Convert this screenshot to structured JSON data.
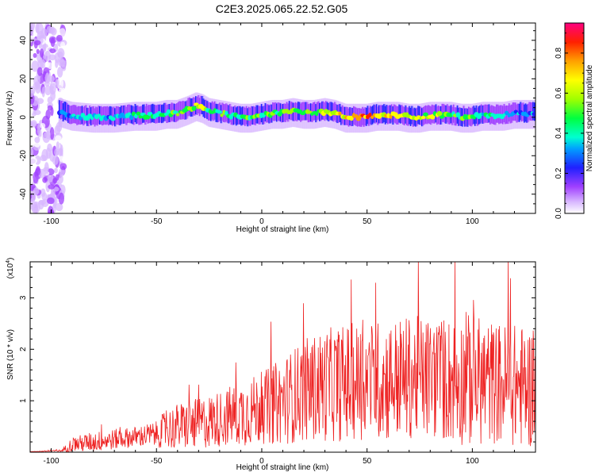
{
  "figure_title": "C2E3.2025.065.22.52.G05",
  "chart_data": [
    {
      "type": "heatmap",
      "title": "C2E3.2025.065.22.52.G05",
      "xlabel": "Height of straight line (km)",
      "ylabel": "Frequency (Hz)",
      "xlim": [
        -110,
        130
      ],
      "ylim": [
        -50,
        49
      ],
      "xticks": [
        -100,
        -50,
        0,
        50,
        100
      ],
      "yticks": [
        -40,
        -20,
        0,
        20,
        40
      ],
      "colorbar": {
        "label": "Normalized spectral amplitude",
        "range": [
          0.0,
          0.95
        ],
        "ticks": [
          0.0,
          0.2,
          0.4,
          0.6,
          0.8
        ]
      },
      "ridge": {
        "x": [
          -96,
          -90,
          -80,
          -70,
          -60,
          -50,
          -45,
          -40,
          -35,
          -31,
          -28,
          -25,
          -20,
          -15,
          -10,
          -5,
          0,
          5,
          10,
          15,
          20,
          25,
          30,
          35,
          40,
          45,
          50,
          55,
          60,
          65,
          70,
          75,
          80,
          85,
          90,
          95,
          100,
          105,
          110,
          115,
          120,
          125,
          130
        ],
        "freq_hz": [
          3,
          1,
          0,
          0,
          1,
          1,
          2,
          2,
          4,
          6,
          5,
          3,
          2,
          1,
          0,
          0,
          1,
          2,
          2,
          3,
          2,
          2,
          3,
          2,
          0,
          0,
          0,
          1,
          1,
          1,
          0,
          0,
          1,
          1,
          1,
          0,
          0,
          1,
          1,
          1,
          2,
          2,
          2
        ],
        "peak_amplitude": [
          0.35,
          0.45,
          0.45,
          0.45,
          0.5,
          0.55,
          0.6,
          0.65,
          0.7,
          0.8,
          0.75,
          0.6,
          0.6,
          0.55,
          0.55,
          0.6,
          0.6,
          0.6,
          0.65,
          0.7,
          0.75,
          0.7,
          0.75,
          0.8,
          0.85,
          0.9,
          0.9,
          0.85,
          0.85,
          0.8,
          0.8,
          0.75,
          0.7,
          0.7,
          0.65,
          0.6,
          0.6,
          0.5,
          0.5,
          0.45,
          0.45,
          0.4,
          0.4
        ]
      }
    },
    {
      "type": "line",
      "xlabel": "Height of straight line (km)",
      "ylabel": "SNR (10 * v/v)",
      "y_multiplier": "(x10",
      "y_multiplier_exp": "4",
      "y_multiplier_close": ")",
      "xlim": [
        -110,
        130
      ],
      "ylim": [
        0,
        3.7
      ],
      "xticks": [
        -100,
        -50,
        0,
        50,
        100
      ],
      "yticks": [
        1,
        2,
        3
      ],
      "color": "#ee2222",
      "envelope": {
        "x": [
          -110,
          -95,
          -90,
          -80,
          -70,
          -60,
          -50,
          -45,
          -40,
          -30,
          -20,
          -10,
          0,
          10,
          20,
          30,
          40,
          50,
          60,
          70,
          80,
          90,
          100,
          110,
          120,
          130
        ],
        "mean_x1e4": [
          0.01,
          0.03,
          0.15,
          0.2,
          0.25,
          0.3,
          0.35,
          0.45,
          0.5,
          0.55,
          0.65,
          0.75,
          0.85,
          1.0,
          1.2,
          1.3,
          1.35,
          1.4,
          1.4,
          1.45,
          1.45,
          1.4,
          1.4,
          1.35,
          1.3,
          1.25
        ],
        "spread_x1e4": [
          0.0,
          0.02,
          0.15,
          0.2,
          0.2,
          0.2,
          0.25,
          0.4,
          0.45,
          0.5,
          0.55,
          0.65,
          0.7,
          0.85,
          1.0,
          1.1,
          1.15,
          1.15,
          1.2,
          1.2,
          1.2,
          1.25,
          1.3,
          1.2,
          1.2,
          1.2
        ]
      }
    }
  ]
}
